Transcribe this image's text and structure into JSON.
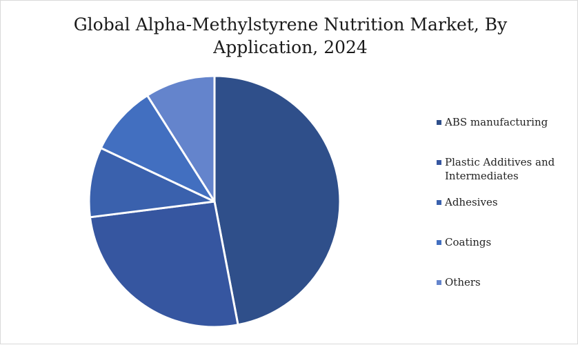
{
  "chart_data": {
    "type": "pie",
    "title": "Global Alpha-Methylstyrene Nutrition Market, By Application, 2024",
    "legend_position": "right",
    "slices": [
      {
        "label": "ABS manufacturing",
        "value": 47,
        "color": "#2f4f8a"
      },
      {
        "label": "Plastic Additives and Intermediates",
        "value": 26,
        "color": "#3656a0"
      },
      {
        "label": "Adhesives",
        "value": 9,
        "color": "#3a61ad"
      },
      {
        "label": "Coatings",
        "value": 9,
        "color": "#426fc0"
      },
      {
        "label": "Others",
        "value": 9,
        "color": "#6484cc"
      }
    ]
  }
}
